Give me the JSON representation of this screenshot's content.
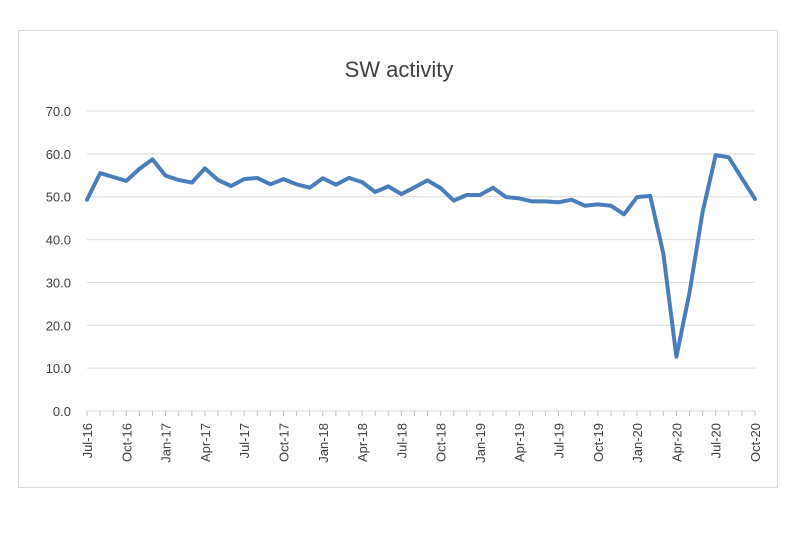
{
  "chart_data": {
    "type": "line",
    "title": "SW activity",
    "xlabel": "",
    "ylabel": "",
    "ylim": [
      0,
      70
    ],
    "y_ticks": [
      "0.0",
      "10.0",
      "20.0",
      "30.0",
      "40.0",
      "50.0",
      "60.0",
      "70.0"
    ],
    "x_tick_labels": [
      "Jul-16",
      "Oct-16",
      "Jan-17",
      "Apr-17",
      "Jul-17",
      "Oct-17",
      "Jan-18",
      "Apr-18",
      "Jul-18",
      "Oct-18",
      "Jan-19",
      "Apr-19",
      "Jul-19",
      "Oct-19",
      "Jan-20",
      "Apr-20",
      "Jul-20",
      "Oct-20"
    ],
    "grid": true,
    "legend": "none",
    "line_color": "#4a7ebb",
    "series": [
      {
        "x": [
          "Jul-16",
          "Aug-16",
          "Sep-16",
          "Oct-16",
          "Nov-16",
          "Dec-16",
          "Jan-17",
          "Feb-17",
          "Mar-17",
          "Apr-17",
          "May-17",
          "Jun-17",
          "Jul-17",
          "Aug-17",
          "Sep-17",
          "Oct-17",
          "Nov-17",
          "Dec-17",
          "Jan-18",
          "Feb-18",
          "Mar-18",
          "Apr-18",
          "May-18",
          "Jun-18",
          "Jul-18",
          "Aug-18",
          "Sep-18",
          "Oct-18",
          "Nov-18",
          "Dec-18",
          "Jan-19",
          "Feb-19",
          "Mar-19",
          "Apr-19",
          "May-19",
          "Jun-19",
          "Jul-19",
          "Aug-19",
          "Sep-19",
          "Oct-19",
          "Nov-19",
          "Dec-19",
          "Jan-20",
          "Feb-20",
          "Mar-20",
          "Apr-20",
          "May-20",
          "Jun-20",
          "Jul-20",
          "Aug-20",
          "Sep-20",
          "Oct-20"
        ],
        "values": [
          49.3,
          55.5,
          54.6,
          53.7,
          56.5,
          58.7,
          54.9,
          53.9,
          53.3,
          56.6,
          53.9,
          52.5,
          54.1,
          54.4,
          52.9,
          54.1,
          52.9,
          52.1,
          54.3,
          52.8,
          54.4,
          53.4,
          51.1,
          52.4,
          50.6,
          52.2,
          53.8,
          52.0,
          49.1,
          50.4,
          50.4,
          52.1,
          49.9,
          49.6,
          48.9,
          48.9,
          48.7,
          49.3,
          47.9,
          48.2,
          47.9,
          45.9,
          49.9,
          50.2,
          36.8,
          12.7,
          27.6,
          46.4,
          59.7,
          59.2,
          54.3,
          49.5
        ]
      }
    ]
  }
}
